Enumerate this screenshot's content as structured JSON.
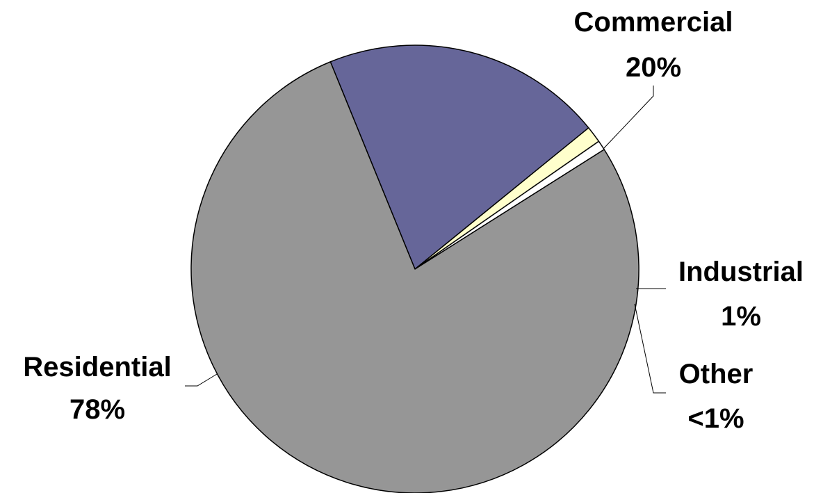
{
  "chart_data": {
    "type": "pie",
    "slices": [
      {
        "label": "Commercial",
        "percent_text": "20%",
        "value": 20.3,
        "color": "#666699"
      },
      {
        "label": "Industrial",
        "percent_text": "1%",
        "value": 1.2,
        "color": "#FFFFCC"
      },
      {
        "label": "Other",
        "percent_text": "<1%",
        "value": 0.7,
        "color": "#FFFFFF"
      },
      {
        "label": "Residential",
        "percent_text": "78%",
        "value": 77.8,
        "color": "#969696"
      }
    ]
  }
}
